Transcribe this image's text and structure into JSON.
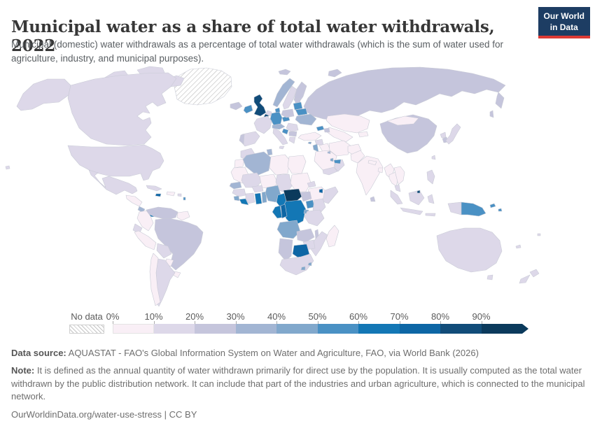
{
  "header": {
    "title": "Municipal water as a share of total water withdrawals, 2022",
    "subtitle": "Municipal (domestic) water withdrawals as a percentage of total water withdrawals (which is the sum of water used for agriculture, industry, and municipal purposes).",
    "logo": {
      "line1": "Our World",
      "line2": "in Data"
    }
  },
  "legend": {
    "no_data_label": "No data",
    "tick_labels": [
      "0%",
      "10%",
      "20%",
      "30%",
      "40%",
      "50%",
      "60%",
      "70%",
      "80%",
      "90%"
    ]
  },
  "footer": {
    "data_source_label": "Data source:",
    "data_source_text": " AQUASTAT - FAO's Global Information System on Water and Agriculture, FAO, via World Bank (2026)",
    "note_label": "Note:",
    "note_text": " It is defined as the annual quantity of water withdrawn primarily for direct use by the population. It is usually computed as the total water withdrawn by the public distribution network. It can include that part of the industries and urban agriculture, which is connected to the municipal network.",
    "citation": "OurWorldinData.org/water-use-stress | CC BY"
  },
  "colors": {
    "logo_bg": "#1d3d63",
    "logo_stripe": "#dc3a34",
    "title_text": "#373737",
    "subtitle_text": "#5a5f63",
    "legend_text": "#5b5b5b",
    "footer_text": "#6e6e6e",
    "country_border": "#c9cbd6"
  },
  "chart_data": {
    "type": "choropleth_map",
    "title": "Municipal water as a share of total water withdrawals, 2022",
    "year": "2022",
    "unit": "%",
    "legend_position": "bottom",
    "color_scale": {
      "bins": [
        {
          "range": "0-10%",
          "color": "#f9eff6"
        },
        {
          "range": "10-20%",
          "color": "#ddd8e9"
        },
        {
          "range": "20-30%",
          "color": "#c5c5dc"
        },
        {
          "range": "30-40%",
          "color": "#a2b5d3"
        },
        {
          "range": "40-50%",
          "color": "#81a8cc"
        },
        {
          "range": "50-60%",
          "color": "#4a91c4"
        },
        {
          "range": "60-70%",
          "color": "#1377b5"
        },
        {
          "range": "70-80%",
          "color": "#0d66a5"
        },
        {
          "range": "80-90%",
          "color": "#114c79"
        },
        {
          "range": "90-100%",
          "color": "#0b3a5c"
        }
      ],
      "no_data": {
        "label": "No data",
        "style": "diagonal-hatch"
      }
    },
    "regions": {
      "greenland": "nodata",
      "svalbard": 2,
      "canadian-arctic": 1,
      "alaska": 1,
      "canada": 1,
      "usa": 1,
      "hawaii": 1,
      "mexico": 1,
      "guatemala-honduras": 0,
      "costa-rica": 3,
      "panama": 6,
      "cuba": 1,
      "jamaica": 7,
      "hispaniola": 0,
      "puerto-rico": 1,
      "lesser-antilles": 5,
      "venezuela": 2,
      "colombia": 0,
      "guyanas": 0,
      "ecuador": 1,
      "peru": 0,
      "brazil": 2,
      "bolivia": 1,
      "paraguay": 0,
      "uruguay": 0,
      "argentina": 1,
      "chile": 0,
      "iceland": 2,
      "ireland": 5,
      "united-kingdom": 8,
      "norway": 3,
      "sweden": 1,
      "finland": 2,
      "denmark": 5,
      "germany": 5,
      "benelux": 1,
      "belgium": 8,
      "france": 1,
      "spain": 1,
      "portugal": 2,
      "italy": 1,
      "alpine": 3,
      "czechia": 5,
      "poland": 2,
      "baltics": 5,
      "estonia": 2,
      "belarus": 5,
      "ukraine": 3,
      "romania": 1,
      "croatia": 5,
      "serbia-bulgaria": 2,
      "greece": 1,
      "russia": 2,
      "kazakhstan": 0,
      "central-asia": 0,
      "kyrgyz-tajik": 0,
      "georgia": 5,
      "azerbaijan": 2,
      "turkey": 0,
      "cyprus": 4,
      "syria": 1,
      "iraq": 0,
      "jordan-israel": 4,
      "saudi-arabia": 0,
      "yemen": 1,
      "oman": 1,
      "qatar": 4,
      "uae": 5,
      "kuwait": 3,
      "iran": 0,
      "afghanistan": 0,
      "pakistan": 0,
      "india": 0,
      "sri-lanka": 2,
      "nepal": 0,
      "bangladesh": 0,
      "myanmar": 0,
      "thailand": 0,
      "indochina": 0,
      "malaysia": 1,
      "china": 2,
      "mongolia": 0,
      "north-korea": 1,
      "south-korea": 2,
      "japan": 1,
      "taiwan": 1,
      "philippines": 1,
      "indonesia": 1,
      "brunei": 8,
      "papua-new-guinea": 5,
      "fiji": 1,
      "new-caledonia": 1,
      "australia": 1,
      "tasmania": 1,
      "new-zealand": 1,
      "morocco": 1,
      "western-sahara": 0,
      "algeria": 3,
      "tunisia": 3,
      "libya": 0,
      "egypt": 0,
      "mauritania": 0,
      "mali": 1,
      "niger": 0,
      "chad": 1,
      "sudan": 0,
      "eritrea": 1,
      "ethiopia": 0,
      "djibouti": 7,
      "somalia": 1,
      "senegal": 3,
      "guinea": 1,
      "sierra-leone": 4,
      "liberia": 6,
      "cote-divoire": 1,
      "ghana": 6,
      "togo-benin": 4,
      "burkina-faso": 1,
      "nigeria": 4,
      "cameroon": 6,
      "central-african-republic": 9,
      "south-sudan": 2,
      "drc": 6,
      "gabon": 6,
      "congo": 7,
      "uganda": 5,
      "kenya": 1,
      "rwanda-burundi": 4,
      "tanzania": 1,
      "angola": 4,
      "zambia": 2,
      "malawi": 2,
      "mozambique": 1,
      "zimbabwe": 1,
      "botswana": 7,
      "namibia": 2,
      "south-africa": 1,
      "lesotho": 4,
      "eswatini": 4,
      "madagascar": 0
    }
  }
}
